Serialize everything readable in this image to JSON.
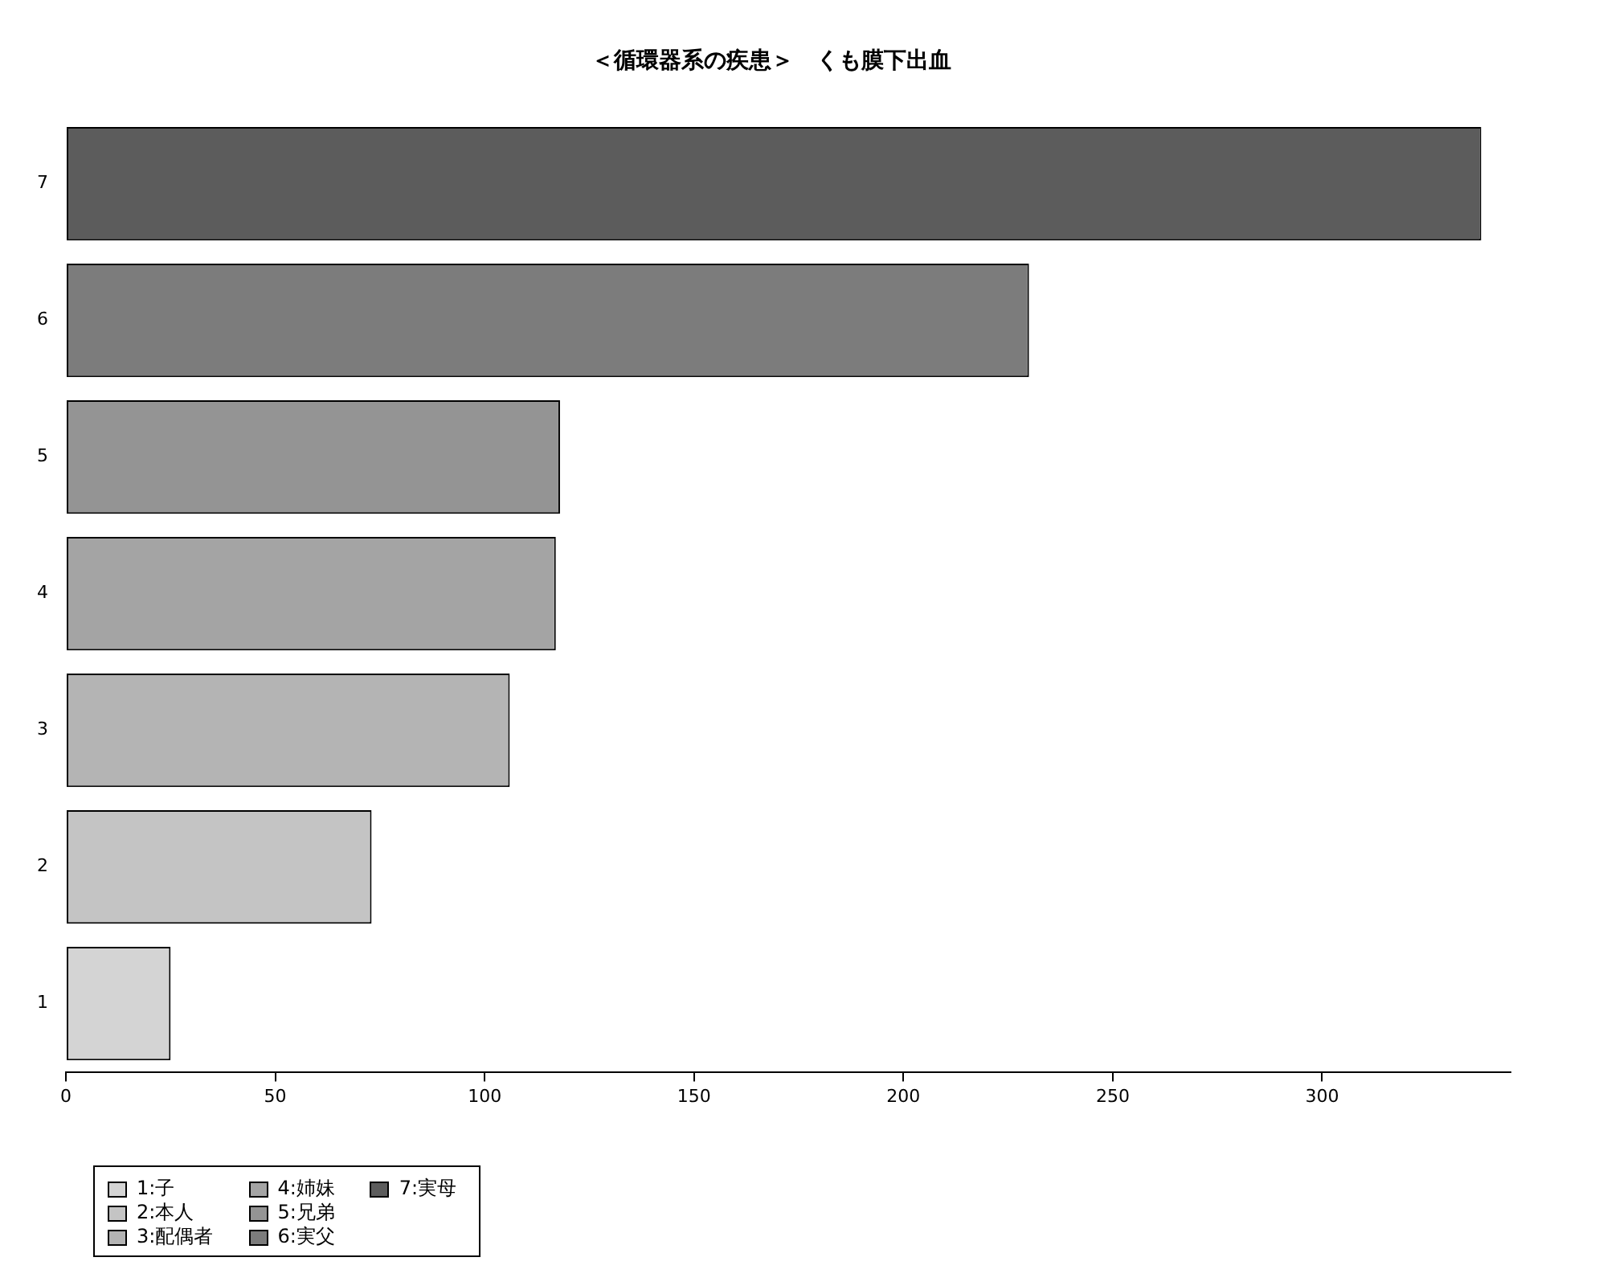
{
  "chart_data": {
    "type": "bar",
    "title": "＜循環器系の疾患＞　くも膜下出血",
    "orientation": "horizontal",
    "stacked": true,
    "legend": "bottom left",
    "grid": false,
    "categories": [
      "7",
      "6",
      "5",
      "4",
      "3",
      "2",
      "1"
    ],
    "xlim": [
      0,
      345
    ],
    "xticks": [
      0,
      50,
      100,
      150,
      200,
      250,
      300
    ],
    "series": [
      {
        "name": "1:子",
        "color": "#d4d4d4",
        "values": [
          null,
          null,
          null,
          null,
          null,
          null,
          25
        ]
      },
      {
        "name": "2:本人",
        "color": "#c4c4c4",
        "values": [
          null,
          null,
          null,
          null,
          null,
          73,
          null
        ]
      },
      {
        "name": "3:配偶者",
        "color": "#b4b4b4",
        "values": [
          null,
          null,
          null,
          null,
          106,
          null,
          null
        ]
      },
      {
        "name": "4:姉妹",
        "color": "#a4a4a4",
        "values": [
          null,
          null,
          null,
          117,
          null,
          null,
          null
        ]
      },
      {
        "name": "5:兄弟",
        "color": "#949494",
        "values": [
          null,
          null,
          118,
          null,
          null,
          null,
          null
        ]
      },
      {
        "name": "6:実父",
        "color": "#7c7c7c",
        "values": [
          null,
          230,
          null,
          null,
          null,
          null,
          null
        ]
      },
      {
        "name": "7:実母",
        "color": "#5c5c5c",
        "values": [
          338,
          null,
          null,
          null,
          null,
          null,
          null
        ]
      }
    ]
  }
}
